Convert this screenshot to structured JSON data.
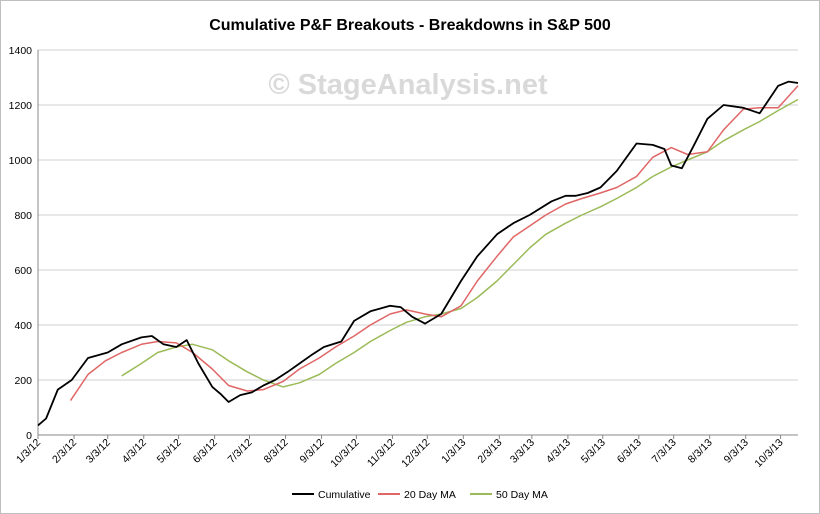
{
  "chart_data": {
    "type": "line",
    "title": "Cumulative P&F Breakouts - Breakdowns in S&P 500",
    "watermark": "© StageAnalysis.net",
    "xlabel": "",
    "ylabel": "",
    "ylim": [
      0,
      1400
    ],
    "yticks": [
      0,
      200,
      400,
      600,
      800,
      1000,
      1200,
      1400
    ],
    "x_range": [
      "1/3/12",
      "10/18/13"
    ],
    "xticks": [
      "1/3/12",
      "2/3/12",
      "3/3/12",
      "4/3/12",
      "5/3/12",
      "6/3/12",
      "7/3/12",
      "8/3/12",
      "9/3/12",
      "10/3/12",
      "11/3/12",
      "12/3/12",
      "1/3/13",
      "2/3/13",
      "3/3/13",
      "4/3/13",
      "5/3/13",
      "6/3/13",
      "7/3/13",
      "8/3/13",
      "9/3/13",
      "10/3/13"
    ],
    "grid": true,
    "legend_position": "bottom",
    "series": [
      {
        "name": "Cumulative",
        "color": "#000000",
        "x": [
          "1/3/12",
          "1/10/12",
          "1/20/12",
          "2/1/12",
          "2/15/12",
          "3/3/12",
          "3/15/12",
          "4/1/12",
          "4/10/12",
          "4/20/12",
          "5/1/12",
          "5/10/12",
          "5/20/12",
          "6/1/12",
          "6/8/12",
          "6/15/12",
          "6/25/12",
          "7/5/12",
          "7/15/12",
          "7/25/12",
          "8/5/12",
          "8/15/12",
          "8/25/12",
          "9/5/12",
          "9/20/12",
          "10/1/12",
          "10/15/12",
          "11/1/12",
          "11/10/12",
          "11/20/12",
          "12/1/12",
          "12/15/12",
          "1/1/13",
          "1/15/13",
          "2/1/13",
          "2/15/13",
          "3/1/13",
          "3/20/13",
          "4/1/13",
          "4/10/13",
          "4/20/13",
          "5/1/13",
          "5/15/13",
          "6/1/13",
          "6/15/13",
          "6/25/13",
          "7/1/13",
          "7/10/13",
          "7/20/13",
          "8/1/13",
          "8/15/13",
          "9/1/13",
          "9/15/13",
          "10/1/13",
          "10/10/13",
          "10/18/13"
        ],
        "values": [
          35,
          60,
          165,
          200,
          280,
          300,
          330,
          355,
          360,
          330,
          320,
          345,
          260,
          175,
          150,
          120,
          145,
          155,
          180,
          200,
          230,
          260,
          290,
          320,
          340,
          415,
          450,
          470,
          465,
          430,
          405,
          440,
          560,
          650,
          730,
          770,
          800,
          850,
          870,
          870,
          880,
          900,
          960,
          1060,
          1055,
          1040,
          980,
          970,
          1050,
          1150,
          1200,
          1190,
          1170,
          1270,
          1285,
          1280
        ]
      },
      {
        "name": "20 Day MA",
        "color": "#e06666",
        "x": [
          "1/31/12",
          "2/15/12",
          "3/1/12",
          "3/15/12",
          "4/1/12",
          "4/15/12",
          "5/1/12",
          "5/15/12",
          "6/1/12",
          "6/15/12",
          "7/1/12",
          "7/15/12",
          "8/1/12",
          "8/15/12",
          "9/1/12",
          "9/15/12",
          "10/1/12",
          "10/15/12",
          "11/1/12",
          "11/15/12",
          "12/1/12",
          "12/15/12",
          "1/1/13",
          "1/15/13",
          "2/1/13",
          "2/15/13",
          "3/1/13",
          "3/15/13",
          "4/1/13",
          "4/15/13",
          "5/1/13",
          "5/15/13",
          "6/1/13",
          "6/15/13",
          "7/1/13",
          "7/15/13",
          "8/1/13",
          "8/15/13",
          "9/1/13",
          "9/15/13",
          "10/1/13",
          "10/18/13"
        ],
        "values": [
          125,
          220,
          270,
          300,
          330,
          340,
          335,
          300,
          240,
          180,
          160,
          165,
          195,
          240,
          280,
          320,
          360,
          400,
          440,
          455,
          440,
          430,
          470,
          560,
          650,
          720,
          760,
          800,
          840,
          860,
          880,
          900,
          940,
          1010,
          1045,
          1020,
          1030,
          1110,
          1185,
          1190,
          1190,
          1270
        ]
      },
      {
        "name": "50 Day MA",
        "color": "#9bbb59",
        "x": [
          "3/15/12",
          "4/1/12",
          "4/15/12",
          "5/1/12",
          "5/15/12",
          "6/1/12",
          "6/15/12",
          "7/1/12",
          "7/15/12",
          "8/1/12",
          "8/15/12",
          "9/1/12",
          "9/15/12",
          "10/1/12",
          "10/15/12",
          "11/1/12",
          "11/15/12",
          "12/1/12",
          "12/15/12",
          "1/1/13",
          "1/15/13",
          "2/1/13",
          "2/15/13",
          "3/1/13",
          "3/15/13",
          "4/1/13",
          "4/15/13",
          "5/1/13",
          "5/15/13",
          "6/1/13",
          "6/15/13",
          "7/1/13",
          "7/15/13",
          "8/1/13",
          "8/15/13",
          "9/1/13",
          "9/15/13",
          "10/1/13",
          "10/18/13"
        ],
        "values": [
          215,
          260,
          300,
          320,
          330,
          310,
          270,
          230,
          200,
          175,
          190,
          220,
          260,
          300,
          340,
          380,
          410,
          430,
          440,
          460,
          500,
          560,
          620,
          680,
          730,
          770,
          800,
          830,
          860,
          900,
          940,
          975,
          1000,
          1030,
          1070,
          1110,
          1140,
          1180,
          1220
        ]
      }
    ]
  }
}
